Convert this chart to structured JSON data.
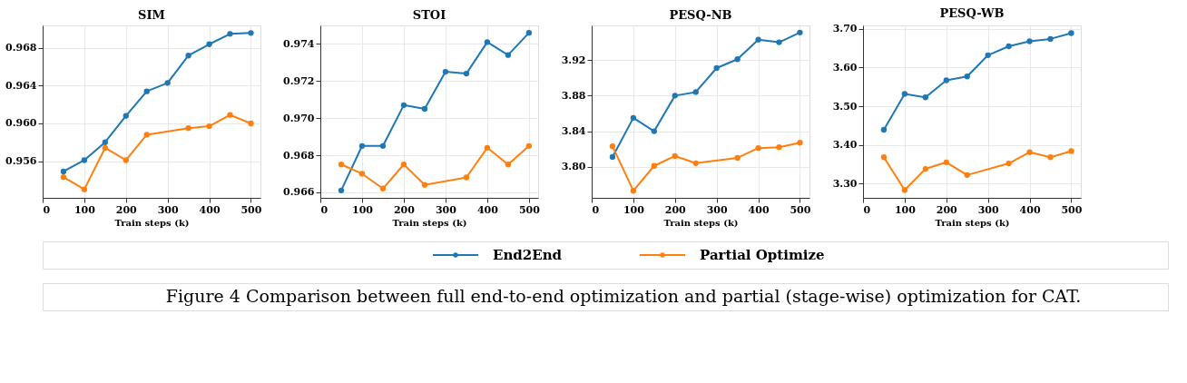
{
  "chart_data": [
    {
      "type": "line",
      "title": "SIM",
      "xlabel": "Train steps (k)",
      "xlim": [
        0,
        523
      ],
      "xticks": [
        0,
        100,
        200,
        300,
        400,
        500
      ],
      "ylim": [
        0.9521,
        0.9704
      ],
      "yticks": [
        0.956,
        {
          "value": 0.96,
          "label": "0.960"
        },
        0.964,
        0.968
      ],
      "grid": true,
      "marker": "circle",
      "line_style": "solid",
      "legend": "bottom",
      "annotations": [
        "Figure 4  Comparison between full end-to-end optimization and partial (stage-wise) optimization for CAT."
      ],
      "series": [
        {
          "name": "End2End",
          "color": "#1f77b4",
          "x": [
            50,
            100,
            150,
            200,
            250,
            300,
            350,
            400,
            450,
            500
          ],
          "values": [
            0.9549,
            0.9561,
            0.958,
            0.9608,
            0.9634,
            0.9643,
            0.9672,
            0.9684,
            0.9695,
            0.9696
          ]
        },
        {
          "name": "Partial Optimize",
          "color": "#ff7f0e",
          "x": [
            50,
            100,
            150,
            200,
            250,
            350,
            400,
            450,
            500
          ],
          "values": [
            0.9543,
            0.953,
            0.9574,
            0.9561,
            0.9588,
            0.9595,
            0.9597,
            0.9609,
            0.96
          ]
        }
      ]
    },
    {
      "type": "line",
      "title": "STOI",
      "xlabel": "Train steps (k)",
      "xlim": [
        0,
        522
      ],
      "xticks": [
        0,
        100,
        200,
        300,
        400,
        500
      ],
      "ylim": [
        0.9657,
        0.975
      ],
      "yticks": [
        0.966,
        0.968,
        {
          "value": 0.97,
          "label": "0.970"
        },
        0.972,
        0.974
      ],
      "grid": true,
      "marker": "circle",
      "line_style": "solid",
      "series": [
        {
          "color": "#1f77b4",
          "x": [
            50,
            100,
            150,
            200,
            250,
            300,
            350,
            400,
            450,
            500
          ],
          "values": [
            0.9661,
            0.9685,
            0.9685,
            0.9707,
            0.9705,
            0.9725,
            0.9724,
            0.9741,
            0.9734,
            0.9746
          ]
        },
        {
          "color": "#ff7f0e",
          "x": [
            50,
            100,
            150,
            200,
            250,
            350,
            400,
            450,
            500
          ],
          "values": [
            0.9675,
            0.967,
            0.9662,
            0.9675,
            0.9664,
            0.9668,
            0.9684,
            0.9675,
            0.9685
          ]
        }
      ]
    },
    {
      "type": "line",
      "title": "PESQ-NB",
      "xlabel": "Train steps (k)",
      "xlim": [
        0,
        523
      ],
      "xticks": [
        0,
        100,
        200,
        300,
        400,
        500
      ],
      "ylim": [
        3.765,
        3.959
      ],
      "yticks": [
        {
          "value": 3.8,
          "label": "3.80"
        },
        3.84,
        3.88,
        3.92
      ],
      "grid": true,
      "marker": "circle",
      "line_style": "solid",
      "series": [
        {
          "color": "#1f77b4",
          "x": [
            50,
            100,
            150,
            200,
            250,
            300,
            350,
            400,
            450,
            500
          ],
          "values": [
            3.811,
            3.855,
            3.84,
            3.88,
            3.884,
            3.911,
            3.921,
            3.943,
            3.94,
            3.951
          ]
        },
        {
          "color": "#ff7f0e",
          "x": [
            50,
            100,
            150,
            200,
            250,
            350,
            400,
            450,
            500
          ],
          "values": [
            3.823,
            3.773,
            3.801,
            3.812,
            3.804,
            3.81,
            3.821,
            3.822,
            3.827
          ]
        }
      ]
    },
    {
      "type": "line",
      "title": "PESQ-WB",
      "xlabel": "Train steps (k)",
      "xlim": [
        0,
        523
      ],
      "xticks": [
        0,
        100,
        200,
        300,
        400,
        500
      ],
      "ylim": [
        3.263,
        3.709
      ],
      "yticks": [
        {
          "value": 3.3,
          "label": "3.30"
        },
        {
          "value": 3.4,
          "label": "3.40"
        },
        {
          "value": 3.5,
          "label": "3.50"
        },
        {
          "value": 3.6,
          "label": "3.60"
        },
        {
          "value": 3.7,
          "label": "3.70"
        }
      ],
      "grid": true,
      "marker": "circle",
      "line_style": "solid",
      "series": [
        {
          "color": "#1f77b4",
          "x": [
            50,
            100,
            150,
            200,
            250,
            300,
            350,
            400,
            450,
            500
          ],
          "values": [
            3.439,
            3.532,
            3.523,
            3.567,
            3.577,
            3.632,
            3.655,
            3.668,
            3.674,
            3.689
          ]
        },
        {
          "color": "#ff7f0e",
          "x": [
            50,
            100,
            150,
            200,
            250,
            350,
            400,
            450,
            500
          ],
          "values": [
            3.368,
            3.283,
            3.338,
            3.355,
            3.322,
            3.352,
            3.381,
            3.368,
            3.384
          ]
        }
      ]
    }
  ]
}
